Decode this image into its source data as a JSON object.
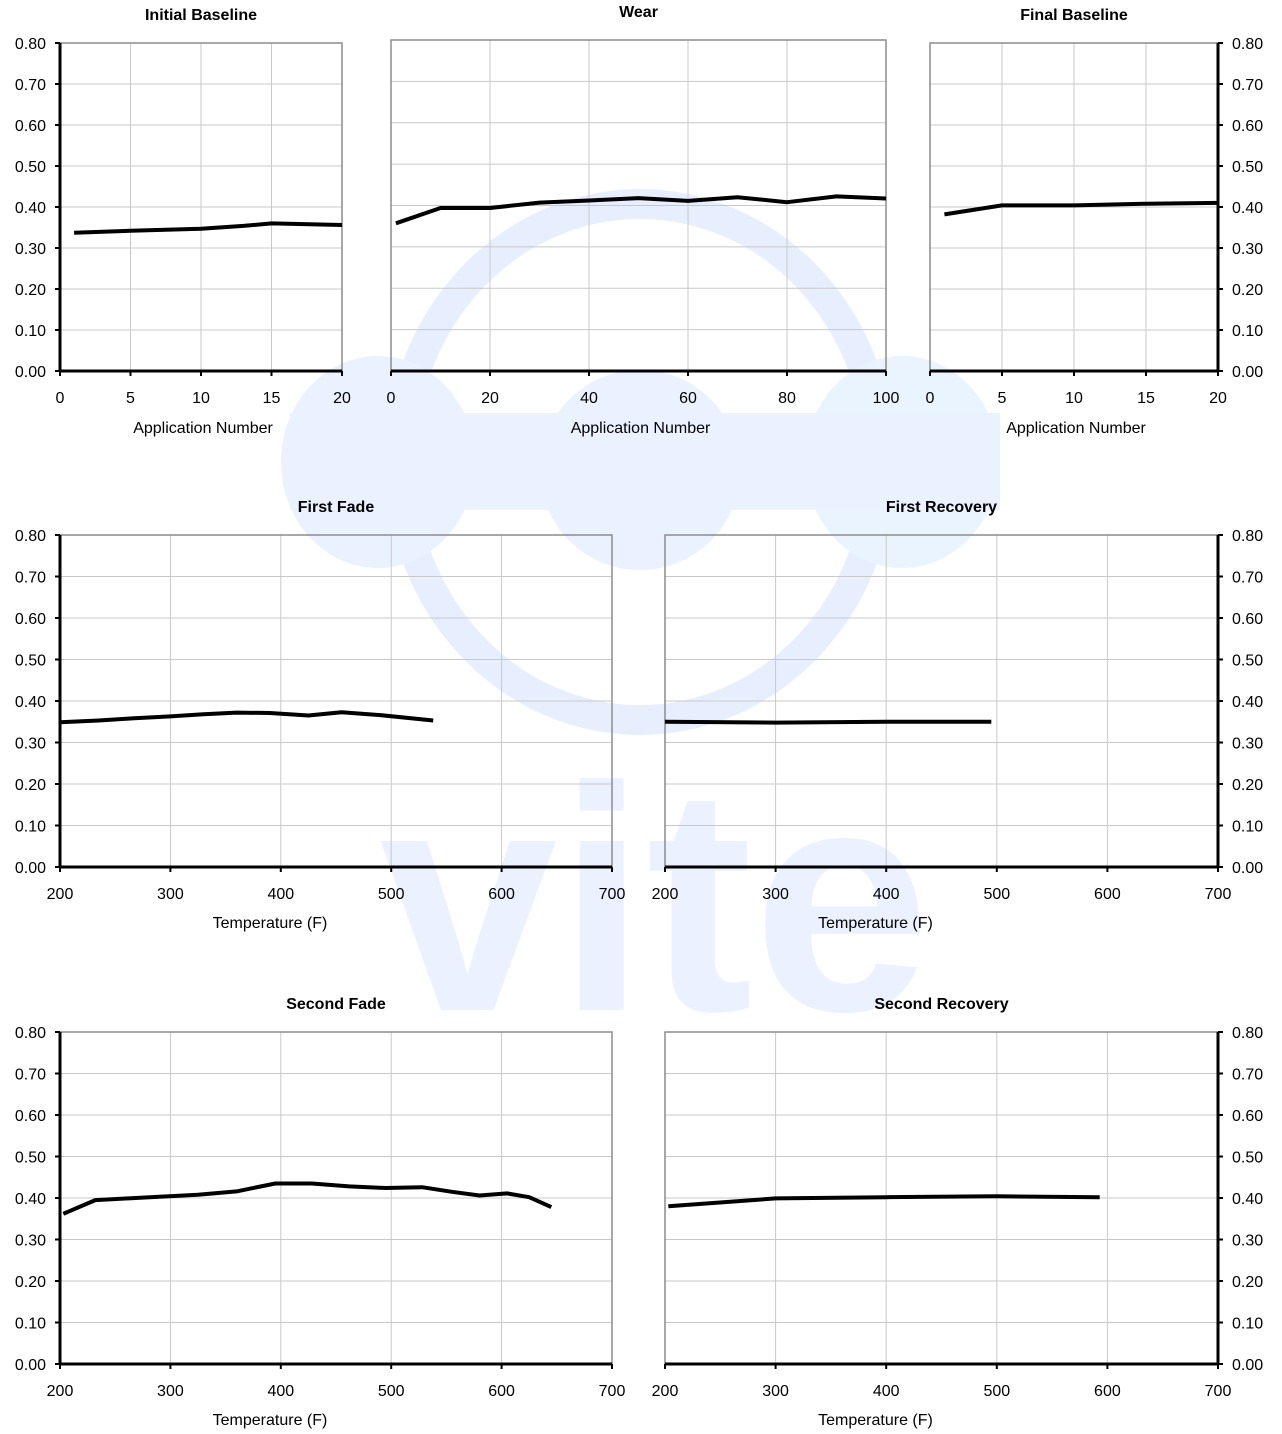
{
  "watermark": {
    "text": "vite",
    "color": "#c7d8ff"
  },
  "charts": [
    {
      "id": "initial-baseline",
      "chart_data": {
        "type": "line",
        "title": "Initial Baseline",
        "xlabel": "Application Number",
        "ylabel": "",
        "xlim": [
          0,
          20
        ],
        "ylim": [
          0,
          0.8
        ],
        "xticks": [
          "0",
          "5",
          "10",
          "15",
          "20"
        ],
        "yticks": [
          "0.00",
          "0.10",
          "0.20",
          "0.30",
          "0.40",
          "0.50",
          "0.60",
          "0.70",
          "0.80"
        ],
        "y_axis_side": "left",
        "grid": true,
        "series": [
          {
            "x": [
              1,
              5,
              10,
              13,
              15,
              20
            ],
            "y": [
              0.337,
              0.342,
              0.347,
              0.354,
              0.36,
              0.356
            ]
          }
        ]
      }
    },
    {
      "id": "wear",
      "chart_data": {
        "type": "line",
        "title": "Wear",
        "xlabel": "Application Number",
        "ylabel": "",
        "xlim": [
          0,
          100
        ],
        "ylim": [
          0,
          0.8
        ],
        "xticks": [
          "0",
          "20",
          "40",
          "60",
          "80",
          "100"
        ],
        "yticks": [],
        "y_axis_side": "none",
        "grid": true,
        "series": [
          {
            "x": [
              1,
              10,
              20,
              30,
              40,
              50,
              60,
              70,
              80,
              90,
              100
            ],
            "y": [
              0.357,
              0.394,
              0.394,
              0.407,
              0.412,
              0.418,
              0.411,
              0.42,
              0.408,
              0.422,
              0.417
            ]
          }
        ]
      }
    },
    {
      "id": "final-baseline",
      "chart_data": {
        "type": "line",
        "title": "Final Baseline",
        "xlabel": "Application Number",
        "ylabel": "",
        "xlim": [
          0,
          20
        ],
        "ylim": [
          0,
          0.8
        ],
        "xticks": [
          "0",
          "5",
          "10",
          "15",
          "20"
        ],
        "yticks": [
          "0.00",
          "0.10",
          "0.20",
          "0.30",
          "0.40",
          "0.50",
          "0.60",
          "0.70",
          "0.80"
        ],
        "y_axis_side": "right",
        "grid": true,
        "series": [
          {
            "x": [
              1,
              5,
              10,
              15,
              20
            ],
            "y": [
              0.382,
              0.404,
              0.404,
              0.408,
              0.41
            ]
          }
        ]
      }
    },
    {
      "id": "first-fade",
      "chart_data": {
        "type": "line",
        "title": "First Fade",
        "xlabel": "Temperature (F)",
        "ylabel": "",
        "xlim": [
          200,
          700
        ],
        "ylim": [
          0,
          0.8
        ],
        "xticks": [
          "200",
          "300",
          "400",
          "500",
          "600",
          "700"
        ],
        "yticks": [
          "0.00",
          "0.10",
          "0.20",
          "0.30",
          "0.40",
          "0.50",
          "0.60",
          "0.70",
          "0.80"
        ],
        "y_axis_side": "left",
        "grid": true,
        "series": [
          {
            "x": [
              200,
              235,
              265,
              300,
              330,
              360,
              390,
              425,
              455,
              490,
              538
            ],
            "y": [
              0.349,
              0.353,
              0.358,
              0.363,
              0.368,
              0.372,
              0.371,
              0.365,
              0.373,
              0.366,
              0.353
            ]
          }
        ]
      }
    },
    {
      "id": "first-recovery",
      "chart_data": {
        "type": "line",
        "title": "First Recovery",
        "xlabel": "Temperature (F)",
        "ylabel": "",
        "xlim": [
          200,
          700
        ],
        "ylim": [
          0,
          0.8
        ],
        "xticks": [
          "200",
          "300",
          "400",
          "500",
          "600",
          "700"
        ],
        "yticks": [
          "0.00",
          "0.10",
          "0.20",
          "0.30",
          "0.40",
          "0.50",
          "0.60",
          "0.70",
          "0.80"
        ],
        "y_axis_side": "right",
        "grid": true,
        "series": [
          {
            "x": [
              200,
              300,
              400,
              495
            ],
            "y": [
              0.35,
              0.348,
              0.35,
              0.35
            ]
          }
        ]
      }
    },
    {
      "id": "second-fade",
      "chart_data": {
        "type": "line",
        "title": "Second Fade",
        "xlabel": "Temperature (F)",
        "ylabel": "",
        "xlim": [
          200,
          700
        ],
        "ylim": [
          0,
          0.8
        ],
        "xticks": [
          "200",
          "300",
          "400",
          "500",
          "600",
          "700"
        ],
        "yticks": [
          "0.00",
          "0.10",
          "0.20",
          "0.30",
          "0.40",
          "0.50",
          "0.60",
          "0.70",
          "0.80"
        ],
        "y_axis_side": "left",
        "grid": true,
        "series": [
          {
            "x": [
              203,
              232,
              262,
              290,
              325,
              360,
              395,
              428,
              462,
              495,
              528,
              555,
              580,
              605,
              625,
              645
            ],
            "y": [
              0.362,
              0.395,
              0.399,
              0.403,
              0.408,
              0.416,
              0.435,
              0.435,
              0.428,
              0.424,
              0.426,
              0.415,
              0.406,
              0.411,
              0.402,
              0.378
            ]
          }
        ]
      }
    },
    {
      "id": "second-recovery",
      "chart_data": {
        "type": "line",
        "title": "Second Recovery",
        "xlabel": "Temperature (F)",
        "ylabel": "",
        "xlim": [
          200,
          700
        ],
        "ylim": [
          0,
          0.8
        ],
        "xticks": [
          "200",
          "300",
          "400",
          "500",
          "600",
          "700"
        ],
        "yticks": [
          "0.00",
          "0.10",
          "0.20",
          "0.30",
          "0.40",
          "0.50",
          "0.60",
          "0.70",
          "0.80"
        ],
        "y_axis_side": "right",
        "grid": true,
        "series": [
          {
            "x": [
              203,
              300,
              400,
              500,
              593
            ],
            "y": [
              0.38,
              0.399,
              0.402,
              0.404,
              0.402
            ]
          }
        ]
      }
    }
  ]
}
